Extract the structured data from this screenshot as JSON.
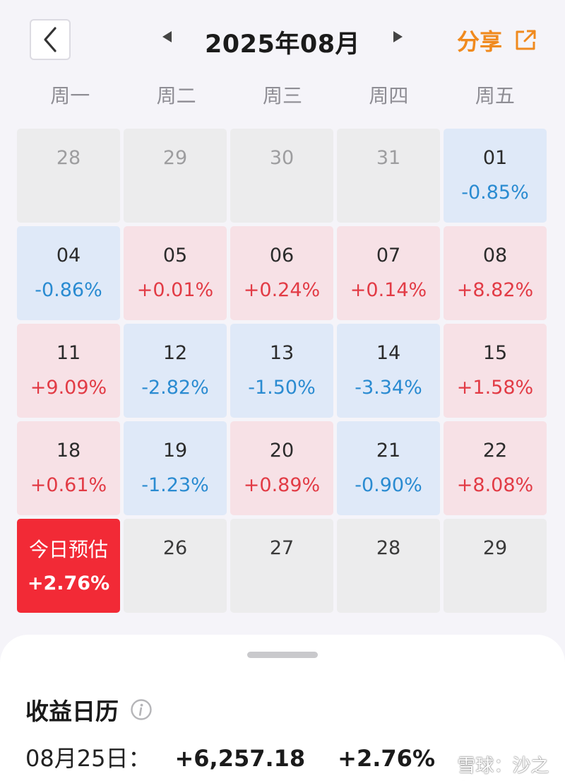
{
  "header": {
    "month_title": "2025年08月",
    "share_label": "分享",
    "accent_color": "#f08a1e"
  },
  "weekdays": [
    "周一",
    "周二",
    "周三",
    "周四",
    "周五"
  ],
  "calendar": {
    "rows": [
      [
        {
          "day": "28",
          "pct": "",
          "state": "empty"
        },
        {
          "day": "29",
          "pct": "",
          "state": "empty"
        },
        {
          "day": "30",
          "pct": "",
          "state": "empty"
        },
        {
          "day": "31",
          "pct": "",
          "state": "empty"
        },
        {
          "day": "01",
          "pct": "-0.85%",
          "state": "down"
        }
      ],
      [
        {
          "day": "04",
          "pct": "-0.86%",
          "state": "down"
        },
        {
          "day": "05",
          "pct": "+0.01%",
          "state": "up"
        },
        {
          "day": "06",
          "pct": "+0.24%",
          "state": "up"
        },
        {
          "day": "07",
          "pct": "+0.14%",
          "state": "up"
        },
        {
          "day": "08",
          "pct": "+8.82%",
          "state": "up"
        }
      ],
      [
        {
          "day": "11",
          "pct": "+9.09%",
          "state": "up"
        },
        {
          "day": "12",
          "pct": "-2.82%",
          "state": "down"
        },
        {
          "day": "13",
          "pct": "-1.50%",
          "state": "down"
        },
        {
          "day": "14",
          "pct": "-3.34%",
          "state": "down"
        },
        {
          "day": "15",
          "pct": "+1.58%",
          "state": "up"
        }
      ],
      [
        {
          "day": "18",
          "pct": "+0.61%",
          "state": "up"
        },
        {
          "day": "19",
          "pct": "-1.23%",
          "state": "down"
        },
        {
          "day": "20",
          "pct": "+0.89%",
          "state": "up"
        },
        {
          "day": "21",
          "pct": "-0.90%",
          "state": "down"
        },
        {
          "day": "22",
          "pct": "+8.08%",
          "state": "up"
        }
      ],
      [
        {
          "day": "今日预估",
          "pct": "+2.76%",
          "state": "today"
        },
        {
          "day": "26",
          "pct": "",
          "state": "future"
        },
        {
          "day": "27",
          "pct": "",
          "state": "future"
        },
        {
          "day": "28",
          "pct": "",
          "state": "future"
        },
        {
          "day": "29",
          "pct": "",
          "state": "future"
        }
      ]
    ],
    "colors": {
      "up": "#e23b45",
      "down": "#2a8bd1",
      "today_bg": "#f22a36"
    }
  },
  "sheet": {
    "title": "收益日历",
    "date_label": "08月25日：",
    "amount": "+6,257.18",
    "pct": "+2.76%"
  },
  "watermark": {
    "text": "雪球：沙之剑"
  }
}
